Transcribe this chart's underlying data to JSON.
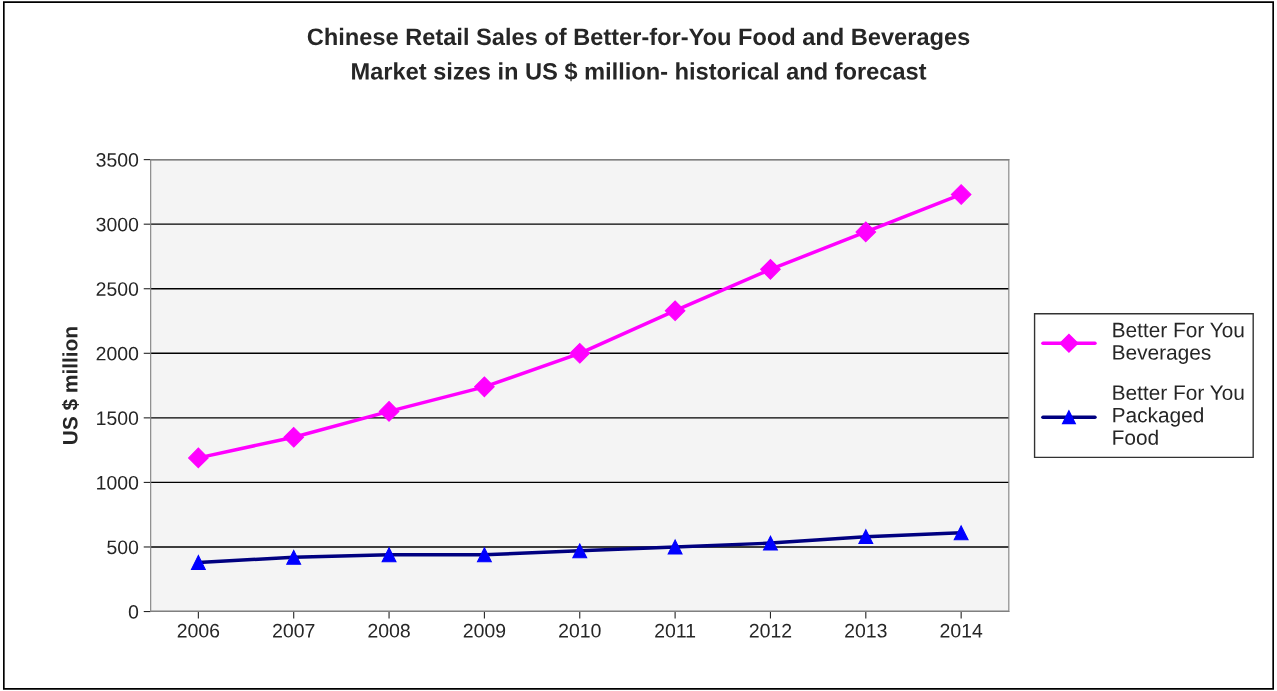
{
  "chart_data": {
    "type": "line",
    "title": "Chinese Retail Sales of Better-for-You Food and Beverages",
    "subtitle": "Market sizes in US $ million- historical and forecast",
    "ylabel": "US $ million",
    "categories": [
      "2006",
      "2007",
      "2008",
      "2009",
      "2010",
      "2011",
      "2012",
      "2013",
      "2014"
    ],
    "series": [
      {
        "name": "Better For You\nBeverages",
        "color": "#ff00ff",
        "marker": "diamond",
        "values": [
          1190,
          1350,
          1550,
          1740,
          2000,
          2330,
          2650,
          2940,
          3230
        ]
      },
      {
        "name": "Better For You\nPackaged\nFood",
        "color": "#000080",
        "marker": "triangle",
        "values": [
          380,
          420,
          440,
          440,
          470,
          500,
          530,
          580,
          610
        ]
      }
    ],
    "ylim": [
      0,
      3500
    ],
    "yticks": [
      0,
      500,
      1000,
      1500,
      2000,
      2500,
      3000,
      3500
    ],
    "grid": "y",
    "legend": "right"
  }
}
